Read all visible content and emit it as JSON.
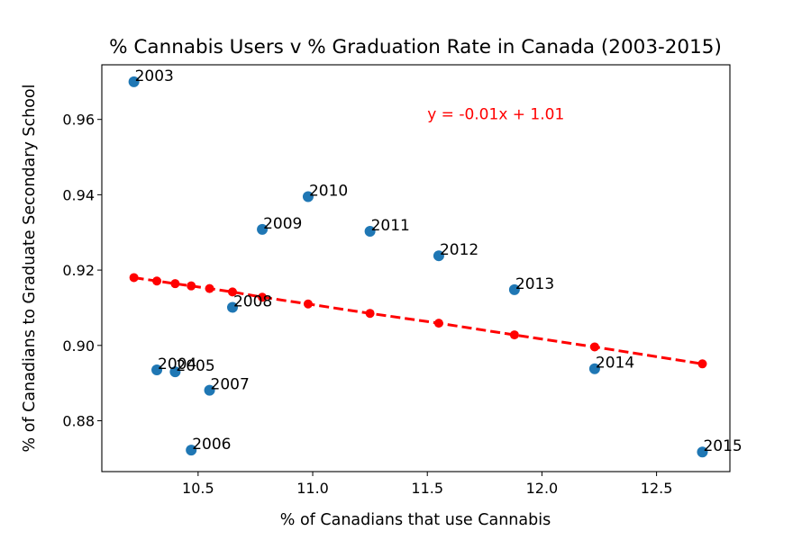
{
  "chart_data": {
    "type": "scatter",
    "title": "% Cannabis Users v % Graduation Rate in Canada (2003-2015)",
    "xlabel": "% of Canadians that use Cannabis",
    "ylabel": "% of Canadians to Graduate Secondary School",
    "xlim": [
      10.08,
      12.82
    ],
    "ylim": [
      0.8665,
      0.9745
    ],
    "xticks": [
      "10.5",
      "11.0",
      "11.5",
      "12.0",
      "12.5"
    ],
    "xtick_values": [
      10.5,
      11.0,
      11.5,
      12.0,
      12.5
    ],
    "yticks": [
      "0.88",
      "0.90",
      "0.92",
      "0.94",
      "0.96"
    ],
    "ytick_values": [
      0.88,
      0.9,
      0.92,
      0.94,
      0.96
    ],
    "grid": false,
    "series": [
      {
        "color": "#1f77b4",
        "points": [
          {
            "label": "2003",
            "x": 10.22,
            "y": 0.97
          },
          {
            "label": "2004",
            "x": 10.32,
            "y": 0.8935
          },
          {
            "label": "2005",
            "x": 10.4,
            "y": 0.893
          },
          {
            "label": "2006",
            "x": 10.47,
            "y": 0.8722
          },
          {
            "label": "2007",
            "x": 10.55,
            "y": 0.8881
          },
          {
            "label": "2008",
            "x": 10.65,
            "y": 0.9101
          },
          {
            "label": "2009",
            "x": 10.78,
            "y": 0.9308
          },
          {
            "label": "2010",
            "x": 10.98,
            "y": 0.9395
          },
          {
            "label": "2011",
            "x": 11.25,
            "y": 0.9303
          },
          {
            "label": "2012",
            "x": 11.55,
            "y": 0.9238
          },
          {
            "label": "2013",
            "x": 11.88,
            "y": 0.9148
          },
          {
            "label": "2014",
            "x": 12.23,
            "y": 0.8938
          },
          {
            "label": "2015",
            "x": 12.7,
            "y": 0.8717
          }
        ]
      }
    ],
    "trendline": {
      "color": "#ff0000",
      "style": "dashed",
      "equation": "y = -0.01x + 1.01",
      "equation_x": 11.5,
      "equation_y": 0.96,
      "points": [
        {
          "x": 10.22,
          "y": 0.918
        },
        {
          "x": 10.32,
          "y": 0.9171
        },
        {
          "x": 10.4,
          "y": 0.9164
        },
        {
          "x": 10.47,
          "y": 0.9158
        },
        {
          "x": 10.55,
          "y": 0.9151
        },
        {
          "x": 10.65,
          "y": 0.9142
        },
        {
          "x": 10.78,
          "y": 0.9128
        },
        {
          "x": 10.98,
          "y": 0.911
        },
        {
          "x": 11.25,
          "y": 0.9085
        },
        {
          "x": 11.55,
          "y": 0.9059
        },
        {
          "x": 11.88,
          "y": 0.9028
        },
        {
          "x": 12.23,
          "y": 0.8996
        },
        {
          "x": 12.7,
          "y": 0.8951
        }
      ]
    }
  }
}
